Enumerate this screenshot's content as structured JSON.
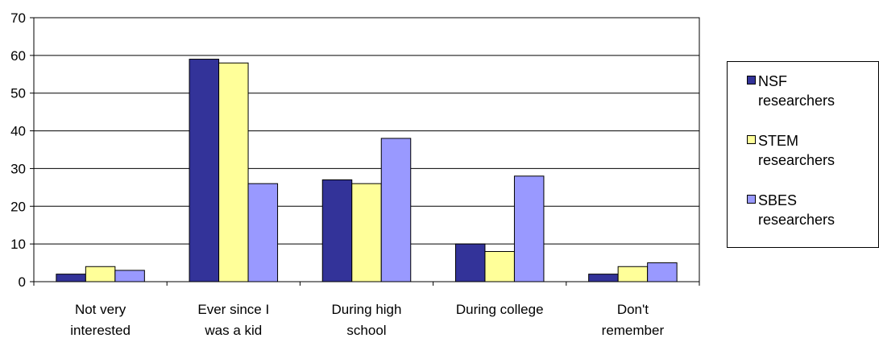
{
  "chart_data": {
    "type": "bar",
    "categories": [
      [
        "Not very",
        "interested"
      ],
      [
        "Ever since I",
        "was a kid"
      ],
      [
        "During high",
        "school"
      ],
      [
        "During college"
      ],
      [
        "Don't",
        "remember"
      ]
    ],
    "series": [
      {
        "name": "NSF researchers",
        "legend_lines": [
          "NSF",
          "researchers"
        ],
        "color": "#333399",
        "values": [
          2,
          59,
          27,
          10,
          2
        ]
      },
      {
        "name": "STEM researchers",
        "legend_lines": [
          "STEM",
          "researchers"
        ],
        "color": "#FFFF99",
        "values": [
          4,
          58,
          26,
          8,
          4
        ]
      },
      {
        "name": "SBES researchers",
        "legend_lines": [
          "SBES",
          "researchers"
        ],
        "color": "#9999FF",
        "values": [
          3,
          26,
          38,
          28,
          5
        ]
      }
    ],
    "y_ticks": [
      "0",
      "10",
      "20",
      "30",
      "40",
      "50",
      "60",
      "70"
    ],
    "ylim": [
      0,
      70
    ],
    "grid": true,
    "legend_position": "right",
    "title": "",
    "xlabel": "",
    "ylabel": ""
  }
}
